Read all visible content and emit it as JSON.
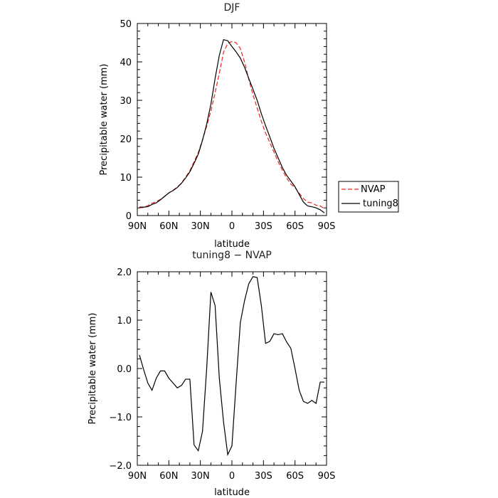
{
  "chart_data": [
    {
      "type": "line",
      "title": "DJF",
      "xlabel": "latitude",
      "ylabel": "Precipitable water  (mm)",
      "x_ticks": [
        "90N",
        "60N",
        "30N",
        "0",
        "30S",
        "60S",
        "90S"
      ],
      "xlim": [
        90,
        -90
      ],
      "ylim": [
        0,
        50
      ],
      "y_ticks": [
        "0",
        "10",
        "20",
        "30",
        "40",
        "50"
      ],
      "legend_position": "right",
      "legend": [
        "NVAP",
        "tuning8"
      ],
      "x": [
        88,
        84,
        80,
        76,
        72,
        68,
        64,
        60,
        56,
        52,
        48,
        44,
        40,
        36,
        32,
        28,
        24,
        20,
        16,
        12,
        8,
        4,
        0,
        -4,
        -8,
        -12,
        -16,
        -20,
        -24,
        -28,
        -32,
        -36,
        -40,
        -44,
        -48,
        -52,
        -56,
        -60,
        -64,
        -68,
        -72,
        -76,
        -80,
        -84,
        -88
      ],
      "series": [
        {
          "name": "NVAP",
          "color": "#e8261f",
          "style": "dashed",
          "values": [
            2.0,
            2.1,
            2.6,
            3.2,
            3.6,
            4.2,
            5.0,
            5.9,
            6.6,
            7.4,
            8.5,
            10.0,
            11.7,
            14.0,
            16.4,
            19.7,
            23.3,
            27.2,
            32.0,
            37.0,
            42.5,
            44.8,
            45.3,
            45.0,
            43.5,
            40.0,
            35.5,
            31.5,
            28.0,
            24.5,
            21.5,
            19.0,
            16.5,
            14.0,
            11.8,
            9.8,
            8.2,
            7.3,
            5.8,
            4.4,
            3.5,
            3.3,
            2.7,
            2.5,
            1.8
          ]
        },
        {
          "name": "tuning8",
          "color": "#000000",
          "style": "solid",
          "values": [
            2.2,
            2.2,
            2.3,
            2.9,
            3.3,
            4.1,
            5.0,
            5.9,
            6.5,
            7.3,
            8.4,
            9.8,
            11.4,
            13.6,
            16.0,
            19.6,
            23.8,
            29.0,
            35.7,
            41.7,
            45.8,
            45.5,
            44.0,
            42.6,
            41.0,
            38.6,
            35.7,
            32.9,
            30.0,
            26.5,
            23.4,
            20.5,
            17.5,
            15.0,
            12.5,
            10.5,
            9.0,
            7.5,
            5.5,
            3.5,
            2.5,
            2.3,
            2.0,
            1.5,
            0.7
          ]
        }
      ]
    },
    {
      "type": "line",
      "title": "tuning8 − NVAP",
      "xlabel": "latitude",
      "ylabel": "Precipitable water  (mm)",
      "x_ticks": [
        "90N",
        "60N",
        "30N",
        "0",
        "30S",
        "60S",
        "90S"
      ],
      "xlim": [
        90,
        -90
      ],
      "ylim": [
        -2.0,
        2.0
      ],
      "y_ticks": [
        "−2.0",
        "−1.0",
        "0.0",
        "1.0",
        "2.0"
      ],
      "x": [
        88,
        84,
        80,
        76,
        72,
        68,
        64,
        60,
        56,
        52,
        48,
        44,
        40,
        36,
        32,
        28,
        24,
        20,
        16,
        12,
        8,
        4,
        0,
        -4,
        -8,
        -12,
        -16,
        -20,
        -24,
        -28,
        -32,
        -36,
        -40,
        -44,
        -48,
        -52,
        -56,
        -60,
        -64,
        -68,
        -72,
        -76,
        -80,
        -84,
        -88
      ],
      "series": [
        {
          "name": "tuning8",
          "color": "#000000",
          "values": [
            0.28,
            -0.02,
            -0.3,
            -0.45,
            -0.2,
            -0.05,
            -0.05,
            -0.2,
            -0.3,
            -0.4,
            -0.35,
            -0.22,
            -0.22,
            -1.58,
            -1.7,
            -1.3,
            0.0,
            1.58,
            1.3,
            -0.2,
            -1.1,
            -1.78,
            -1.6,
            -0.3,
            0.95,
            1.4,
            1.75,
            1.9,
            1.88,
            1.3,
            0.52,
            0.56,
            0.72,
            0.7,
            0.72,
            0.55,
            0.42,
            0.0,
            -0.45,
            -0.68,
            -0.72,
            -0.66,
            -0.72,
            -0.28,
            -0.28
          ]
        }
      ]
    }
  ]
}
